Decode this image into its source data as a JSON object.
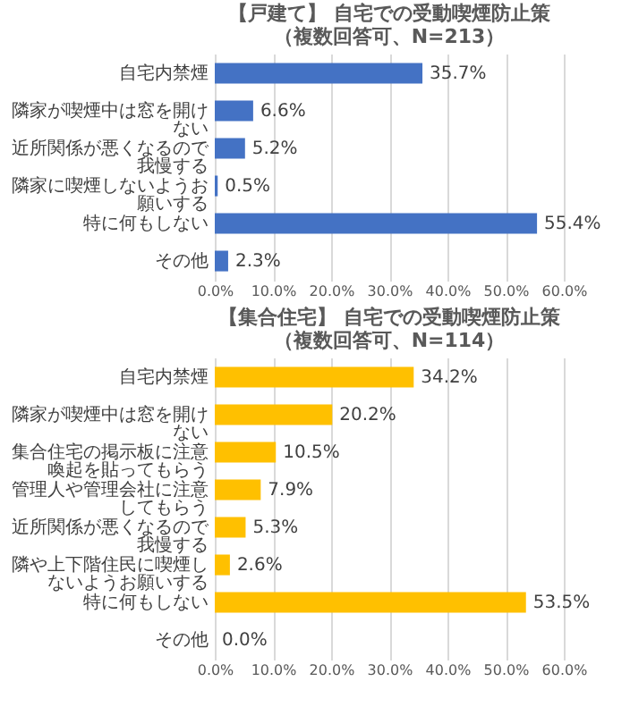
{
  "chart_data": [
    {
      "type": "bar",
      "orientation": "horizontal",
      "title": "【戸建て】 自宅での受動喫煙防止策",
      "subtitle": "（複数回答可、N=213）",
      "categories": [
        "自宅内禁煙",
        "隣家が喫煙中は窓を開けない",
        "近所関係が悪くなるので我慢する",
        "隣家に喫煙しないようお願いする",
        "特に何もしない",
        "その他"
      ],
      "values": [
        35.7,
        6.6,
        5.2,
        0.5,
        55.4,
        2.3
      ],
      "value_labels": [
        "35.7%",
        "6.6%",
        "5.2%",
        "0.5%",
        "55.4%",
        "2.3%"
      ],
      "color": "#4472c4",
      "xlim": [
        0,
        60
      ],
      "xticks": [
        {
          "value": 0,
          "label": "0.0%"
        },
        {
          "value": 10,
          "label": "10.0%"
        },
        {
          "value": 20,
          "label": "20.0%"
        },
        {
          "value": 30,
          "label": "30.0%"
        },
        {
          "value": 40,
          "label": "40.0%"
        },
        {
          "value": 50,
          "label": "50.0%"
        },
        {
          "value": 60,
          "label": "60.0%"
        }
      ],
      "grid": "x"
    },
    {
      "type": "bar",
      "orientation": "horizontal",
      "title": "【集合住宅】 自宅での受動喫煙防止策",
      "subtitle": "（複数回答可、N=114）",
      "categories": [
        "自宅内禁煙",
        "隣家が喫煙中は窓を開けない",
        "集合住宅の掲示板に注意喚起を貼ってもらう",
        "管理人や管理会社に注意してもらう",
        "近所関係が悪くなるので我慢する",
        "隣や上下階住民に喫煙しないようお願いする",
        "特に何もしない",
        "その他"
      ],
      "values": [
        34.2,
        20.2,
        10.5,
        7.9,
        5.3,
        2.6,
        53.5,
        0.0
      ],
      "value_labels": [
        "34.2%",
        "20.2%",
        "10.5%",
        "7.9%",
        "5.3%",
        "2.6%",
        "53.5%",
        "0.0%"
      ],
      "color": "#ffc000",
      "xlim": [
        0,
        60
      ],
      "xticks": [
        {
          "value": 0,
          "label": "0.0%"
        },
        {
          "value": 10,
          "label": "10.0%"
        },
        {
          "value": 20,
          "label": "20.0%"
        },
        {
          "value": 30,
          "label": "30.0%"
        },
        {
          "value": 40,
          "label": "40.0%"
        },
        {
          "value": 50,
          "label": "50.0%"
        },
        {
          "value": 60,
          "label": "60.0%"
        }
      ],
      "grid": "x"
    }
  ]
}
